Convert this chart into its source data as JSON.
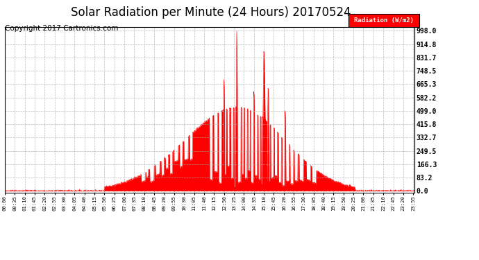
{
  "title": "Solar Radiation per Minute (24 Hours) 20170524",
  "copyright": "Copyright 2017 Cartronics.com",
  "legend_label": "Radiation (W/m2)",
  "yticks": [
    0.0,
    83.2,
    166.3,
    249.5,
    332.7,
    415.8,
    499.0,
    582.2,
    665.3,
    748.5,
    831.7,
    914.8,
    998.0
  ],
  "ymax": 1020,
  "fill_color": "#FF0000",
  "line_color": "#FF0000",
  "background_color": "#FFFFFF",
  "grid_color": "#AAAAAA",
  "title_fontsize": 12,
  "copyright_fontsize": 7.5,
  "tick_interval_minutes": 35,
  "legend_bg": "#CC0000",
  "legend_text_color": "#FFFFFF"
}
